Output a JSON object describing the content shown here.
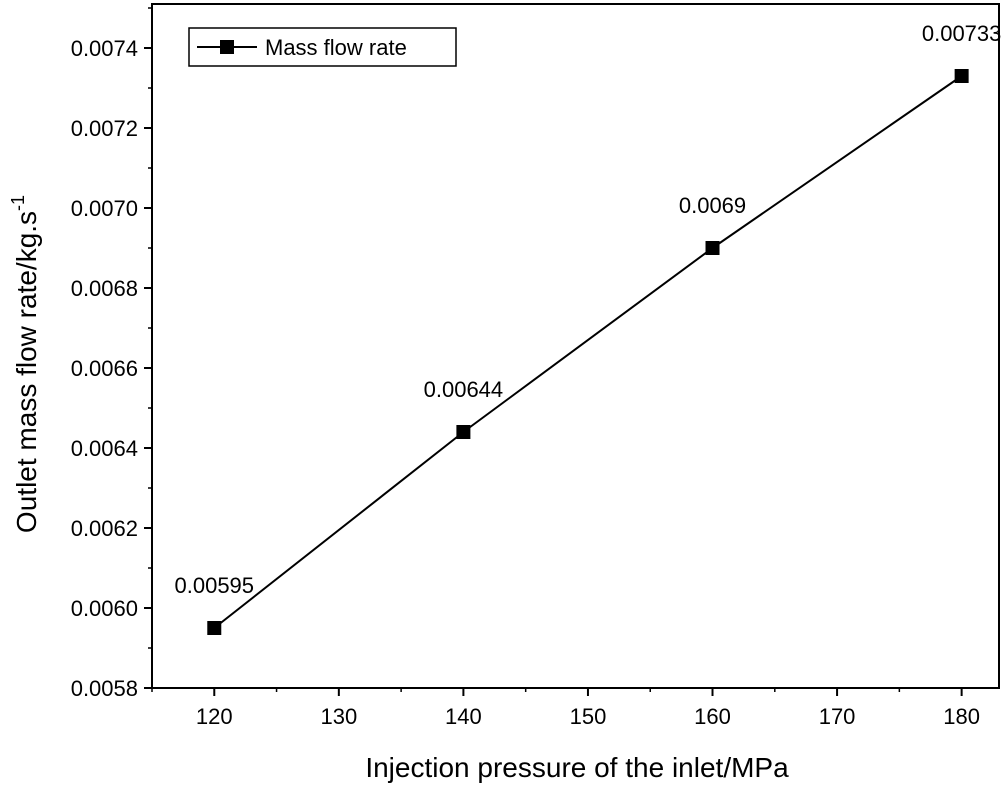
{
  "chart_data": {
    "type": "line",
    "title": "",
    "xlabel": "Injection pressure of the inlet/MPa",
    "ylabel": {
      "main": "Outlet mass flow rate/kg.s",
      "superscript": "-1"
    },
    "xlim": [
      115,
      183
    ],
    "ylim": [
      0.0058,
      0.00751
    ],
    "x_ticks": [
      120,
      130,
      140,
      150,
      160,
      170,
      180
    ],
    "y_ticks": [
      "0.0058",
      "0.0060",
      "0.0062",
      "0.0064",
      "0.0066",
      "0.0068",
      "0.0070",
      "0.0072",
      "0.0074"
    ],
    "legend_position": "top-left",
    "series": [
      {
        "name": "Mass flow rate",
        "color": "#000000",
        "marker": "square",
        "x": [
          120,
          140,
          160,
          180
        ],
        "values": [
          0.00595,
          0.00644,
          0.0069,
          0.00733
        ],
        "labels": [
          "0.00595",
          "0.00644",
          "0.0069",
          "0.00733"
        ]
      }
    ]
  }
}
